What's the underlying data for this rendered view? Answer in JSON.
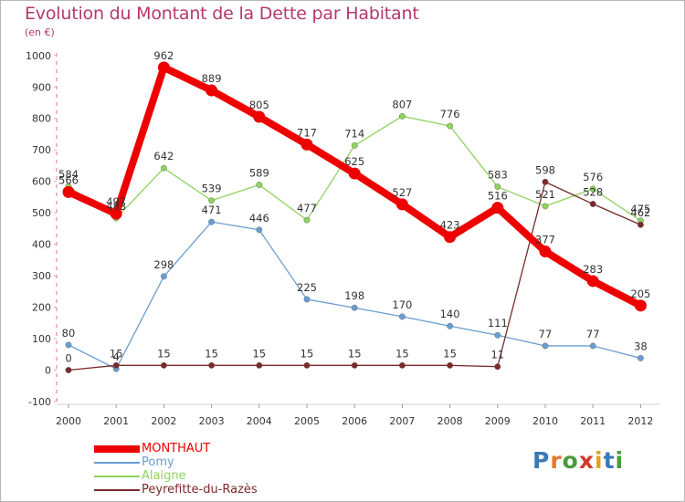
{
  "title": "Evolution du Montant de la Dette par Habitant",
  "subtitle": "(en €)",
  "logo": "Proxiti",
  "logo_colors": [
    "#3a78b8",
    "#e8772a",
    "#4a9a3a",
    "#d13a2a",
    "#e0a020",
    "#3a78b8",
    "#4a9a3a"
  ],
  "chart_data": {
    "type": "line",
    "x": [
      "2000",
      "2001",
      "2002",
      "2003",
      "2004",
      "2005",
      "2006",
      "2007",
      "2008",
      "2009",
      "2010",
      "2011",
      "2012"
    ],
    "ylim": [
      -100,
      1000
    ],
    "yticks": [
      "-100",
      "0",
      "100",
      "200",
      "300",
      "400",
      "500",
      "600",
      "700",
      "800",
      "900",
      "1000"
    ],
    "grid": false,
    "legend_position": "bottom-left",
    "series": [
      {
        "name": "MONTHAUT",
        "color": "#ee0000",
        "emphasis": true,
        "values": [
          566,
          497,
          962,
          889,
          805,
          717,
          625,
          527,
          423,
          516,
          377,
          283,
          205
        ],
        "labels": [
          "566",
          "497",
          "962",
          "889",
          "805",
          "717",
          "625",
          "527",
          "423",
          "516",
          "377",
          "283",
          "205"
        ]
      },
      {
        "name": "Pomy",
        "color": "#6a9ed0",
        "emphasis": false,
        "values": [
          80,
          4,
          298,
          471,
          446,
          225,
          198,
          170,
          140,
          111,
          77,
          77,
          38
        ],
        "labels": [
          "80",
          "4",
          "298",
          "471",
          "446",
          "225",
          "198",
          "170",
          "140",
          "111",
          "77",
          "77",
          "38"
        ]
      },
      {
        "name": "Alaigne",
        "color": "#8fd35e",
        "emphasis": false,
        "values": [
          584,
          483,
          642,
          539,
          589,
          477,
          714,
          807,
          776,
          583,
          521,
          576,
          475
        ],
        "labels": [
          "584",
          "483",
          "642",
          "539",
          "589",
          "477",
          "714",
          "807",
          "776",
          "583",
          "521",
          "576",
          "475"
        ]
      },
      {
        "name": "Peyrefitte-du-Razès",
        "color": "#7a2a2a",
        "emphasis": false,
        "values": [
          0,
          15,
          15,
          15,
          15,
          15,
          15,
          15,
          15,
          11,
          598,
          528,
          462
        ],
        "labels": [
          "0",
          "15",
          "15",
          "15",
          "15",
          "15",
          "15",
          "15",
          "15",
          "11",
          "598",
          "528",
          "462"
        ]
      }
    ]
  }
}
